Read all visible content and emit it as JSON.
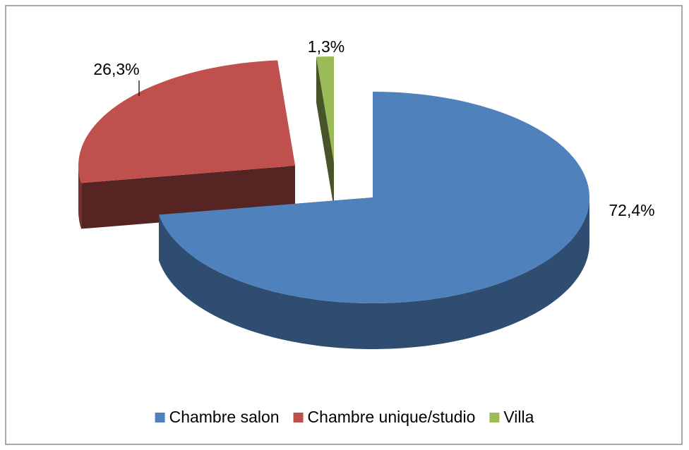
{
  "chart_data": {
    "type": "pie",
    "categories": [
      "Chambre salon",
      "Chambre unique/studio",
      "Villa"
    ],
    "values": [
      72.4,
      26.3,
      1.3
    ],
    "value_labels": [
      "72,4%",
      "26,3%",
      "1,3%"
    ],
    "colors": [
      "#4f81bd",
      "#c0504d",
      "#9bbb59"
    ],
    "legend": "bottom"
  }
}
